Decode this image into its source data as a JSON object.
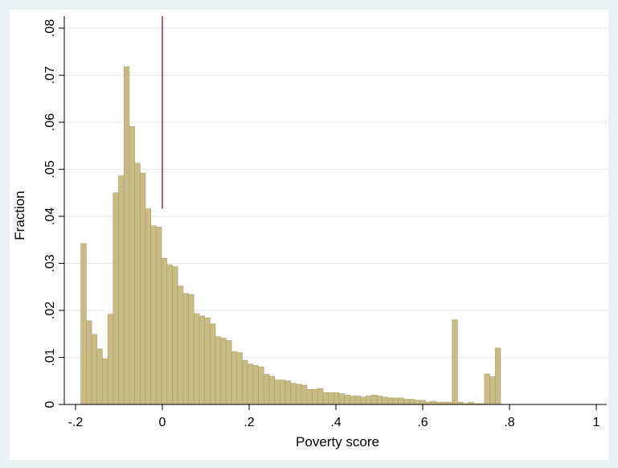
{
  "chart_data": {
    "type": "bar",
    "title": "",
    "xlabel": "Poverty score",
    "ylabel": "Fraction",
    "xlim": [
      -0.2,
      1.0
    ],
    "ylim": [
      0,
      0.08
    ],
    "x_ticks": [
      {
        "value": -0.2,
        "label": "-.2"
      },
      {
        "value": 0,
        "label": "0"
      },
      {
        "value": 0.2,
        "label": ".2"
      },
      {
        "value": 0.4,
        "label": ".4"
      },
      {
        "value": 0.6,
        "label": ".6"
      },
      {
        "value": 0.8,
        "label": ".8"
      },
      {
        "value": 1.0,
        "label": "1"
      }
    ],
    "y_ticks": [
      {
        "value": 0,
        "label": "0"
      },
      {
        "value": 0.01,
        "label": ".01"
      },
      {
        "value": 0.02,
        "label": ".02"
      },
      {
        "value": 0.03,
        "label": ".03"
      },
      {
        "value": 0.04,
        "label": ".04"
      },
      {
        "value": 0.05,
        "label": ".05"
      },
      {
        "value": 0.06,
        "label": ".06"
      },
      {
        "value": 0.07,
        "label": ".07"
      },
      {
        "value": 0.08,
        "label": ".08"
      }
    ],
    "grid": true,
    "bin_start": -0.1877,
    "bin_width": 0.0124,
    "values": [
      0.0342,
      0.0178,
      0.0149,
      0.0118,
      0.0097,
      0.0192,
      0.045,
      0.0486,
      0.0718,
      0.0591,
      0.0513,
      0.0492,
      0.0416,
      0.038,
      0.0377,
      0.0311,
      0.0297,
      0.0293,
      0.0252,
      0.0236,
      0.0234,
      0.0193,
      0.0188,
      0.0184,
      0.0171,
      0.0144,
      0.0141,
      0.0136,
      0.0112,
      0.011,
      0.0094,
      0.0086,
      0.0083,
      0.008,
      0.0064,
      0.006,
      0.0052,
      0.0052,
      0.005,
      0.0045,
      0.0043,
      0.0041,
      0.0032,
      0.0032,
      0.0034,
      0.0025,
      0.0025,
      0.0025,
      0.0023,
      0.002,
      0.0018,
      0.0018,
      0.0016,
      0.0018,
      0.002,
      0.0018,
      0.0016,
      0.0014,
      0.0014,
      0.0014,
      0.0011,
      0.0011,
      0.0009,
      0.0009,
      0.0005,
      0.0007,
      0.0005,
      0.0005,
      0.0005,
      0.018,
      0.0005,
      0.0002,
      0.0005,
      0.0002,
      0.0002,
      0.0065,
      0.0059,
      0.012
    ],
    "reference_line": {
      "x": 0,
      "color": "#b00020"
    },
    "colors": {
      "outer_background": "#eaf2f3",
      "plot_background": "#ffffff",
      "bar_fill": "#c8bb85",
      "bar_stroke": "#ad9f66",
      "grid": "#e6e6e6",
      "axis": "#000000"
    }
  }
}
